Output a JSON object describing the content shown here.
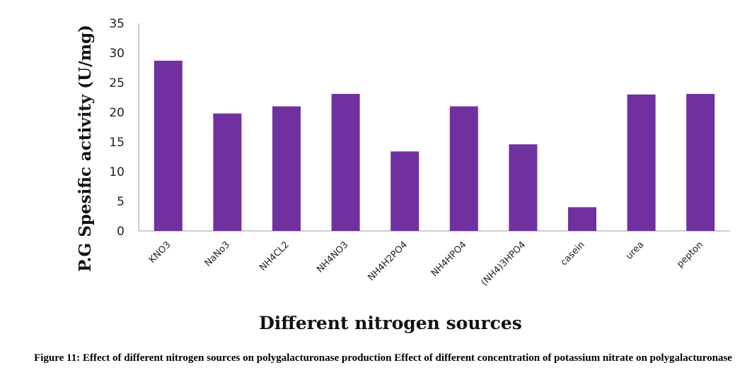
{
  "chart_data": {
    "type": "bar",
    "categories": [
      "KNO3",
      "NaNo3",
      "NH4CL2",
      "NH4NO3",
      "NH4H2PO4",
      "NH4HPO4",
      "(NH4)3HPO4",
      "casein",
      "urea",
      "pepton"
    ],
    "values": [
      28.7,
      19.8,
      21.0,
      23.1,
      13.4,
      21.0,
      14.6,
      4.0,
      23.0,
      23.1
    ],
    "xlabel": "Different nitrogen sources",
    "ylabel": "P.G Spesific activity (U/mg)",
    "ylim": [
      0,
      35
    ],
    "yticks": [
      0,
      5,
      10,
      15,
      20,
      25,
      30,
      35
    ],
    "bar_color": "#7030a0",
    "grid": false,
    "legend": "none"
  },
  "caption": "Figure 11: Effect of different nitrogen sources on polygalacturonase production Effect of different concentration of potassium nitrate on polygalacturonase"
}
